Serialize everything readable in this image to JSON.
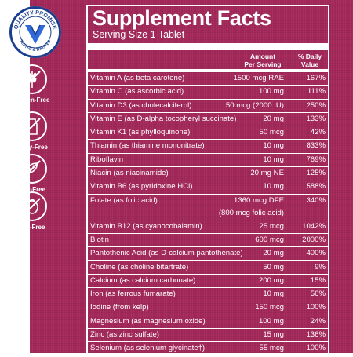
{
  "badges": {
    "quality_promise": {
      "top_text": "QUALITY PROMISE",
      "bottom_text": "TESTED & TRUSTED",
      "icon": "check-v-icon",
      "colors": {
        "ring": "#1b3f8f",
        "check": "#2f6bd8"
      }
    },
    "certifications": [
      {
        "label": "Gluten-Free",
        "icon": "wheat-crossed-icon"
      },
      {
        "label": "Dairy-Free",
        "icon": "milk-crossed-icon"
      },
      {
        "label": "Soy-Free",
        "icon": "soybean-crossed-icon"
      },
      {
        "label": "Nut-Free",
        "icon": "nut-crossed-icon"
      }
    ]
  },
  "facts": {
    "title": "Supplement Facts",
    "serving_size": "Serving Size 1 Tablet",
    "header": {
      "amount_line1": "Amount",
      "amount_line2": "Per Serving",
      "dv_line1": "% Daily",
      "dv_line2": "Value"
    },
    "rows": [
      {
        "name": "Vitamin A (as beta carotene)",
        "amount": "1500 mcg RAE",
        "dv": "167%"
      },
      {
        "name": "Vitamin C (as ascorbic acid)",
        "amount": "100 mg",
        "dv": "111%"
      },
      {
        "name": "Vitamin D3 (as cholecalciferol)",
        "amount": "50 mcg (2000 IU)",
        "dv": "250%"
      },
      {
        "name": "Vitamin E (as D-alpha tocopheryl succinate)",
        "amount": "20 mg",
        "dv": "133%"
      },
      {
        "name": "Vitamin K1 (as phylloquinone)",
        "amount": "50 mcg",
        "dv": "42%"
      },
      {
        "name": "Thiamin (as thiamine mononitrate)",
        "amount": "10 mg",
        "dv": "833%"
      },
      {
        "name": "Riboflavin",
        "amount": "10 mg",
        "dv": "769%"
      },
      {
        "name": "Niacin (as niacinamide)",
        "amount": "20 mg NE",
        "dv": "125%"
      },
      {
        "name": "Vitamin B6 (as pyridoxine HCl)",
        "amount": "10 mg",
        "dv": "588%"
      },
      {
        "name": "Folate (as folic acid)",
        "amount": "1360 mcg DFE",
        "amount_line2": "(800 mcg folic acid)",
        "dv": "340%"
      },
      {
        "name": "Vitamin B12 (as cyanocobalamin)",
        "amount": "25 mcg",
        "dv": "1042%"
      },
      {
        "name": "Biotin",
        "amount": "600 mcg",
        "dv": "2000%"
      },
      {
        "name": "Pantothenic Acid (as D-calcium pantothenate)",
        "amount": "20 mg",
        "dv": "400%"
      },
      {
        "name": "Choline (as choline bitartrate)",
        "amount": "50 mg",
        "dv": "9%"
      },
      {
        "name": "Calcium (as calcium carbonate)",
        "amount": "200 mg",
        "dv": "15%"
      },
      {
        "name": "Iron (as ferrous fumarate)",
        "amount": "10 mg",
        "dv": "56%"
      },
      {
        "name": "Iodine (from kelp)",
        "amount": "150 mcg",
        "dv": "100%"
      },
      {
        "name": "Magnesium (as magnesium oxide)",
        "amount": "100 mg",
        "dv": "24%"
      },
      {
        "name": "Zinc (as zinc sulfate)",
        "amount": "15 mg",
        "dv": "136%"
      },
      {
        "name": "Selenium (as selenium glycinate†)",
        "amount": "55 mcg",
        "dv": "100%"
      }
    ]
  },
  "colors": {
    "background": "#a3285a",
    "text": "#ffffff"
  }
}
